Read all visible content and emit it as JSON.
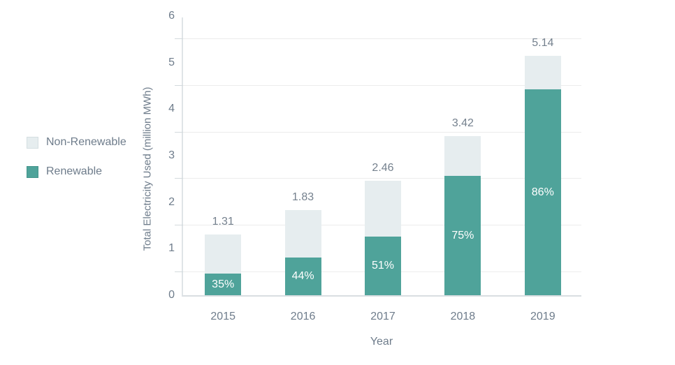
{
  "chart_data": {
    "type": "bar",
    "stacked": true,
    "title": "",
    "xlabel": "Year",
    "ylabel": "Total Electricity Used (million MWh)",
    "categories": [
      "2015",
      "2016",
      "2017",
      "2018",
      "2019"
    ],
    "series": [
      {
        "name": "Renewable",
        "color": "#4FA39A",
        "values": [
          0.46,
          0.81,
          1.25,
          2.57,
          4.42
        ]
      },
      {
        "name": "Non-Renewable",
        "color": "#E6EDEF",
        "values": [
          0.85,
          1.02,
          1.21,
          0.85,
          0.72
        ]
      }
    ],
    "totals": [
      1.31,
      1.83,
      2.46,
      3.42,
      5.14
    ],
    "total_labels": [
      "1.31",
      "1.83",
      "2.46",
      "3.42",
      "5.14"
    ],
    "renewable_pct": [
      35,
      44,
      51,
      75,
      86
    ],
    "percent_labels": [
      "35%",
      "44%",
      "51%",
      "75%",
      "86%"
    ],
    "ylim": [
      0,
      6
    ],
    "yticks": [
      0,
      1,
      2,
      3,
      4,
      5,
      6
    ],
    "gridlines_at": [
      0.5,
      1.5,
      2.5,
      3.5,
      4.5,
      5.5
    ],
    "grid": true,
    "legend_position": "left"
  },
  "legend": {
    "items": [
      {
        "label": "Non-Renewable",
        "fill": "#E6EDEF",
        "border": "#D4DEE1"
      },
      {
        "label": "Renewable",
        "fill": "#4FA39A",
        "border": "#43948B"
      }
    ]
  },
  "colors": {
    "renewable_teal": "#4FA39A",
    "non_renewable_light": "#E6EDEF",
    "text_slate": "#6E7C8B",
    "value_label": "#75818E",
    "gridline": "#ECECEC",
    "axis_line": "#DCE1E4",
    "bar_value_text": "#FFFFFF"
  }
}
